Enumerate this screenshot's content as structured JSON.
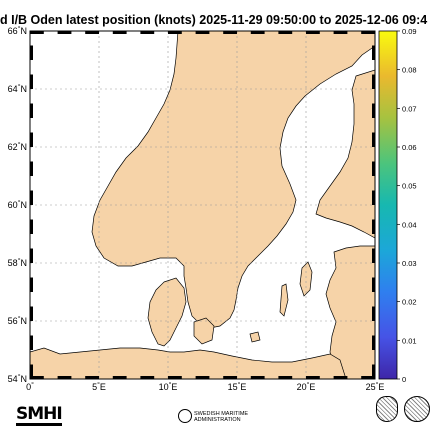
{
  "title": "d I/B Oden latest position  (knots) 2025-11-29 09:50:00  to  2025-12-06 09:4",
  "map": {
    "lat_range": [
      54,
      66
    ],
    "lon_range": [
      0,
      25
    ],
    "lat_ticks": [
      {
        "value": 54,
        "deg": "54",
        "hem": "N"
      },
      {
        "value": 56,
        "deg": "56",
        "hem": "N"
      },
      {
        "value": 58,
        "deg": "58",
        "hem": "N"
      },
      {
        "value": 60,
        "deg": "60",
        "hem": "N"
      },
      {
        "value": 62,
        "deg": "62",
        "hem": "N"
      },
      {
        "value": 64,
        "deg": "64",
        "hem": "N"
      },
      {
        "value": 66,
        "deg": "66",
        "hem": "N"
      }
    ],
    "lon_ticks": [
      {
        "value": 0,
        "deg": "0",
        "hem": ""
      },
      {
        "value": 5,
        "deg": "5",
        "hem": "E"
      },
      {
        "value": 10,
        "deg": "10",
        "hem": "E"
      },
      {
        "value": 15,
        "deg": "15",
        "hem": "E"
      },
      {
        "value": 20,
        "deg": "20",
        "hem": "E"
      },
      {
        "value": 25,
        "deg": "25",
        "hem": "E"
      }
    ],
    "land_color": "#f6d3a8",
    "sea_color": "#ffffff",
    "grid": true
  },
  "colorbar": {
    "min": 0,
    "max": 0.09,
    "ticks": [
      "0",
      "0.01",
      "0.02",
      "0.03",
      "0.04",
      "0.05",
      "0.06",
      "0.07",
      "0.08",
      "0.09"
    ],
    "colormap": "parula"
  },
  "footer": {
    "brand": "SMHI",
    "org_line1": "SWEDISH MARITIME",
    "org_line2": "ADMINISTRATION"
  }
}
